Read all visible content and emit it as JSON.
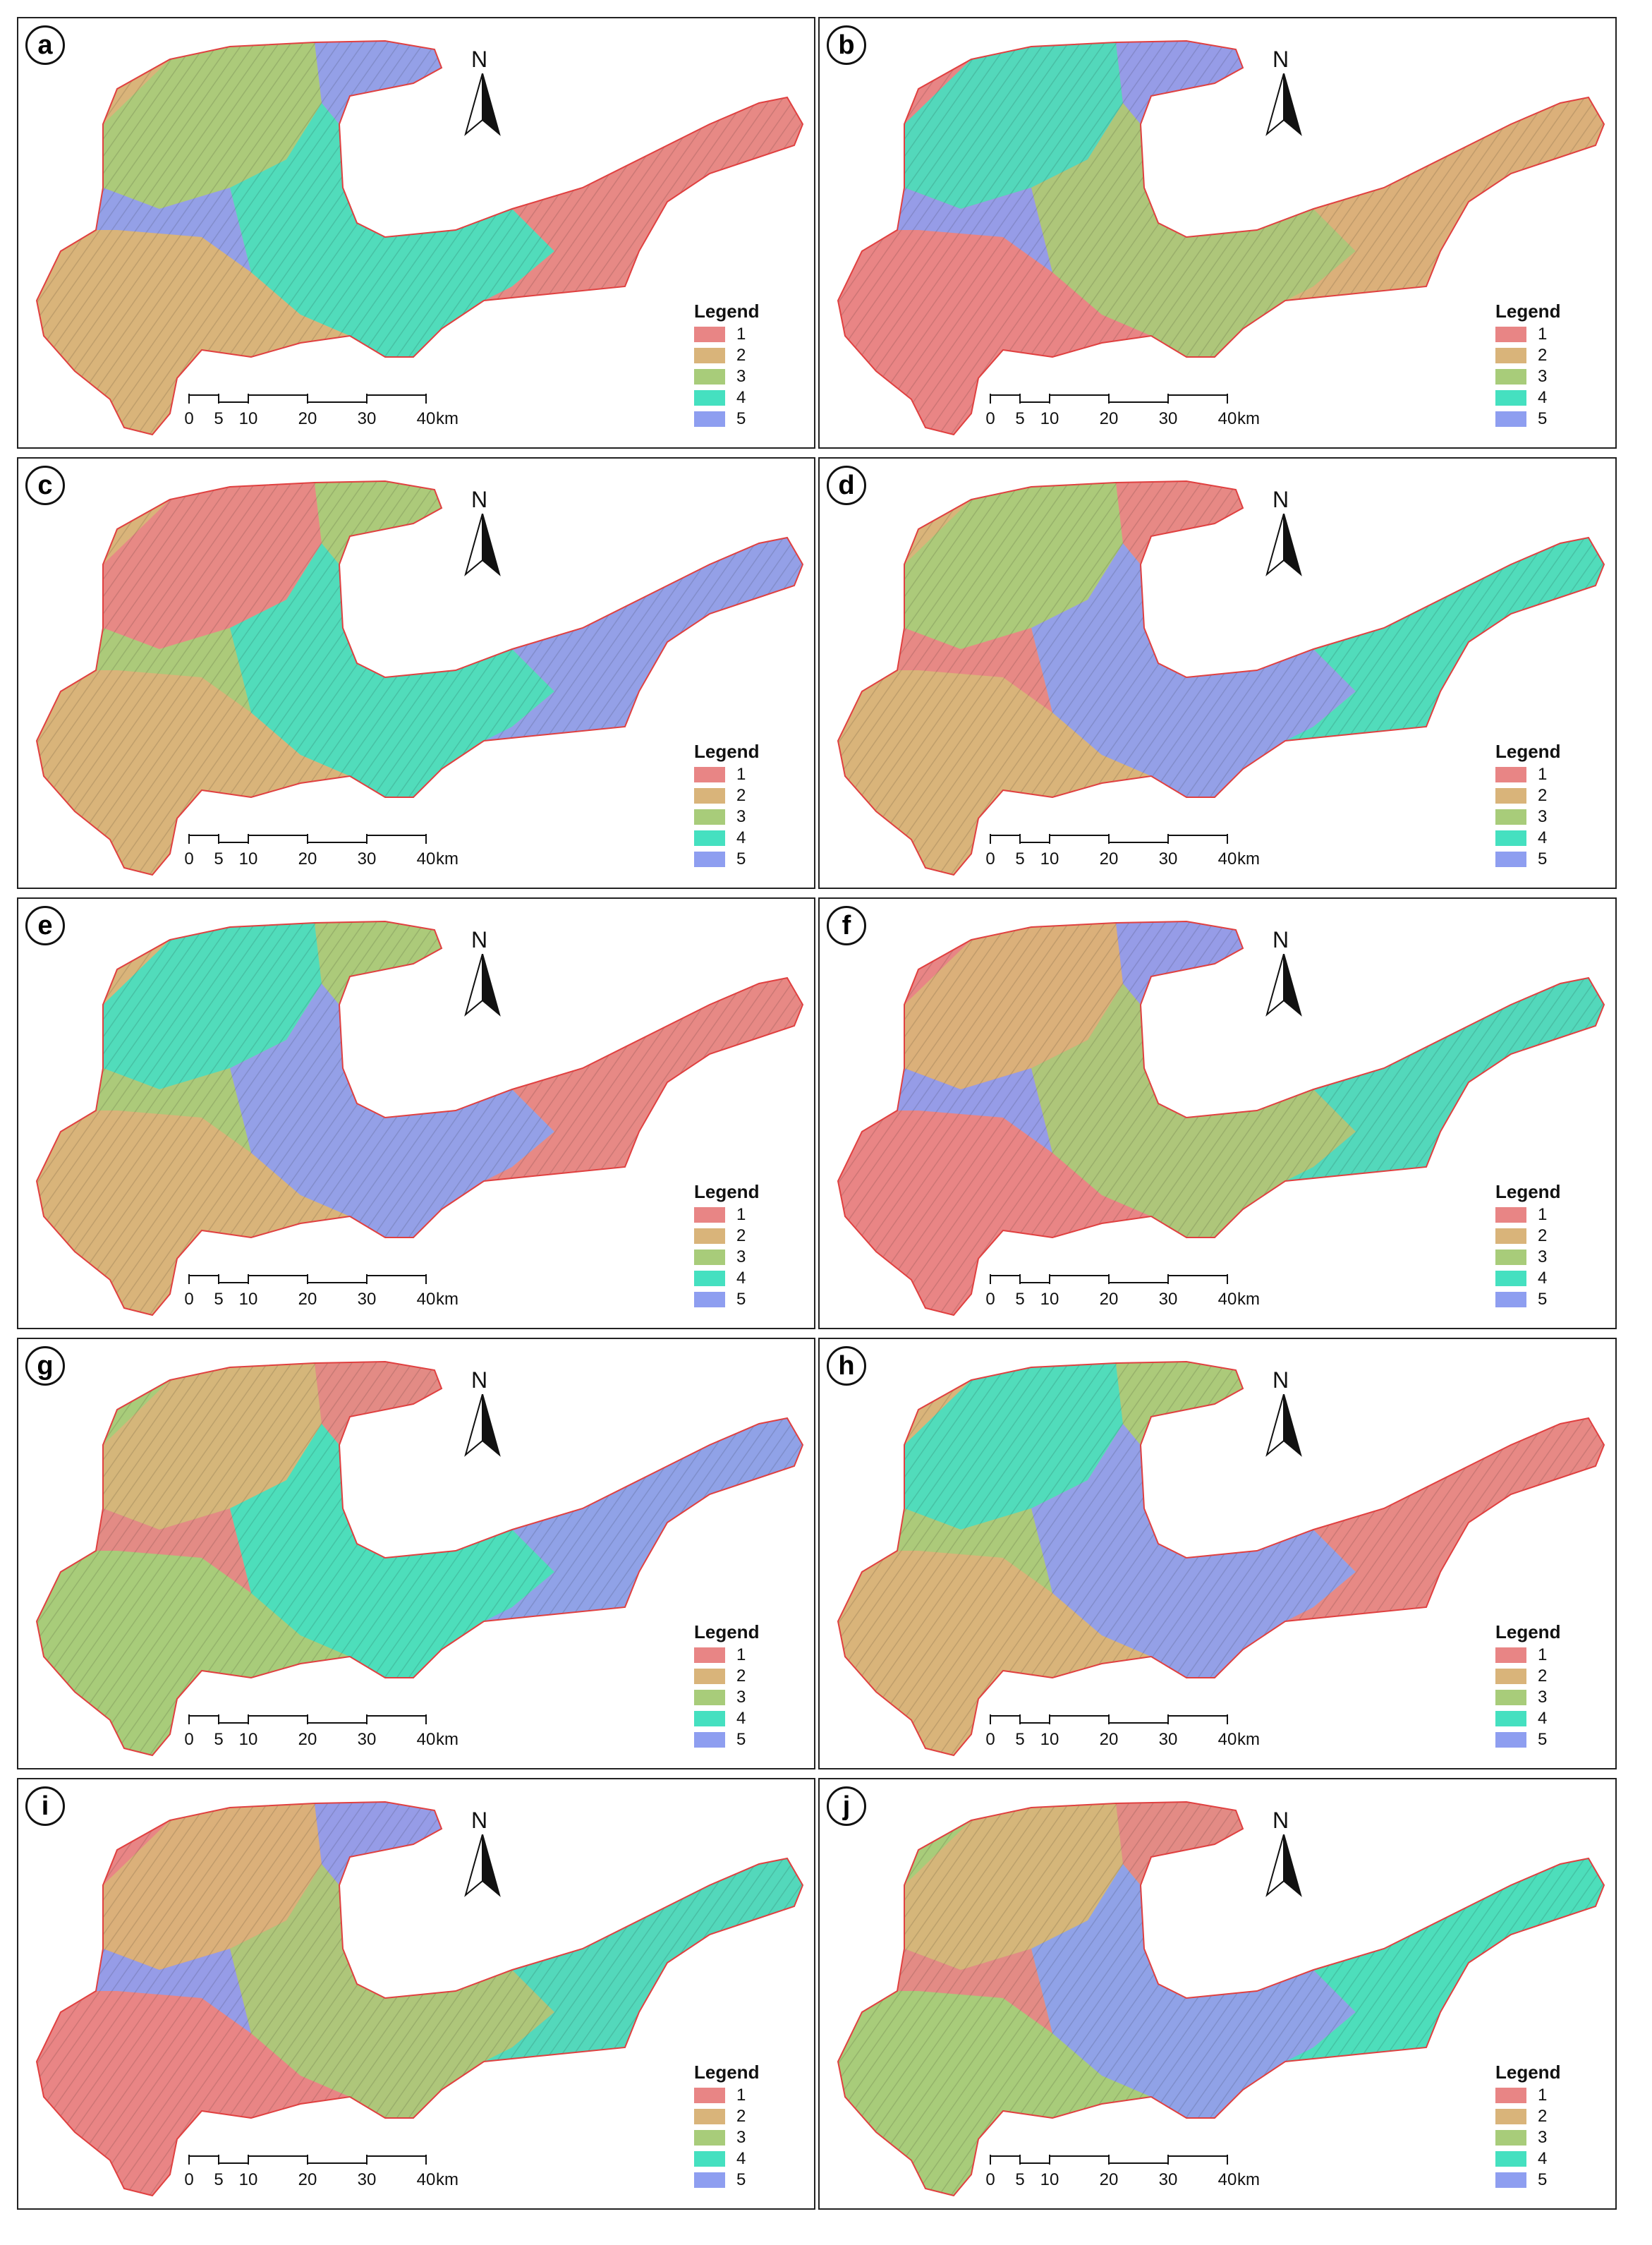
{
  "north_label": "N",
  "legend": {
    "title": "Legend",
    "classes": [
      {
        "label": "1",
        "color": "#e88585"
      },
      {
        "label": "2",
        "color": "#d9b47a"
      },
      {
        "label": "3",
        "color": "#a8cc7a"
      },
      {
        "label": "4",
        "color": "#45e0c0"
      },
      {
        "label": "5",
        "color": "#8e9ef0"
      }
    ]
  },
  "scale_bar": {
    "ticks": [
      "0",
      "5",
      "10",
      "20",
      "30",
      "40"
    ],
    "tick_values_km": [
      0,
      5,
      10,
      20,
      30,
      40
    ],
    "unit": "km"
  },
  "panels": [
    {
      "letter": "a",
      "dominant": [
        "2",
        "3",
        "4",
        "1",
        "5"
      ]
    },
    {
      "letter": "b",
      "dominant": [
        "1",
        "4",
        "3",
        "2",
        "5"
      ]
    },
    {
      "letter": "c",
      "dominant": [
        "2",
        "1",
        "4",
        "5",
        "3"
      ]
    },
    {
      "letter": "d",
      "dominant": [
        "2",
        "3",
        "5",
        "4",
        "1"
      ]
    },
    {
      "letter": "e",
      "dominant": [
        "2",
        "4",
        "5",
        "1",
        "3"
      ]
    },
    {
      "letter": "f",
      "dominant": [
        "1",
        "2",
        "3",
        "4",
        "5"
      ]
    },
    {
      "letter": "g",
      "dominant": [
        "3",
        "2",
        "4",
        "5",
        "1"
      ]
    },
    {
      "letter": "h",
      "dominant": [
        "2",
        "4",
        "5",
        "1",
        "3"
      ]
    },
    {
      "letter": "i",
      "dominant": [
        "1",
        "2",
        "3",
        "4",
        "5"
      ]
    },
    {
      "letter": "j",
      "dominant": [
        "3",
        "2",
        "5",
        "4",
        "1"
      ]
    }
  ]
}
